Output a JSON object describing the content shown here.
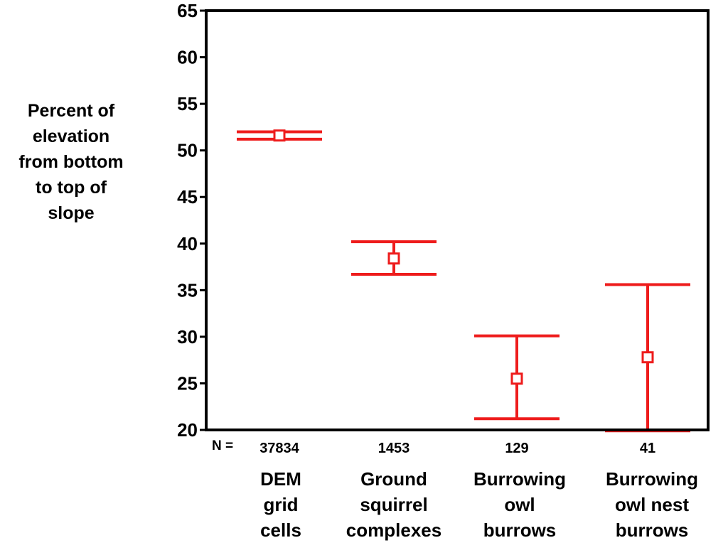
{
  "chart_data": {
    "type": "errorbar",
    "ylabel_lines": [
      "Percent of",
      "elevation",
      "from bottom",
      "to top of",
      "slope"
    ],
    "ylim": [
      20,
      65
    ],
    "yticks": [
      20,
      25,
      30,
      35,
      40,
      45,
      50,
      55,
      60,
      65
    ],
    "n_label": "N =",
    "categories": [
      {
        "label_lines": [
          "DEM",
          "grid",
          "cells"
        ],
        "n": "37834",
        "mean": 51.6,
        "lower": 51.2,
        "upper": 52.0
      },
      {
        "label_lines": [
          "Ground",
          "squirrel",
          "complexes"
        ],
        "n": "1453",
        "mean": 38.4,
        "lower": 36.7,
        "upper": 40.2
      },
      {
        "label_lines": [
          "Burrowing",
          "owl",
          "burrows"
        ],
        "n": "129",
        "mean": 25.5,
        "lower": 21.2,
        "upper": 30.1
      },
      {
        "label_lines": [
          "Burrowing",
          "owl nest",
          "burrows"
        ],
        "n": "41",
        "mean": 27.8,
        "lower": 19.9,
        "upper": 35.6
      }
    ],
    "grid": false,
    "color": "#ee1c1c"
  }
}
